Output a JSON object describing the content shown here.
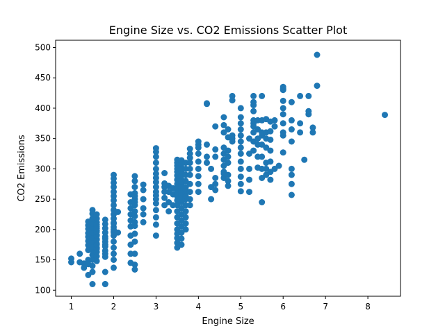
{
  "chart_data": {
    "type": "scatter",
    "title": "Engine Size vs. CO2 Emissions Scatter Plot",
    "xlabel": "Engine Size",
    "ylabel": "CO2 Emissions",
    "xlim": [
      0.63,
      8.77
    ],
    "ylim": [
      90,
      512
    ],
    "xticks": [
      1,
      2,
      3,
      4,
      5,
      6,
      7,
      8
    ],
    "yticks": [
      100,
      150,
      200,
      250,
      300,
      350,
      400,
      450,
      500
    ],
    "grid": false,
    "marker_color": "#1f77b4",
    "series": [
      {
        "x": [
          1.0,
          1.0,
          1.2,
          1.2,
          1.3,
          1.3,
          1.4,
          1.4,
          1.4,
          1.4,
          1.4,
          1.4,
          1.4,
          1.4,
          1.4,
          1.4,
          1.4,
          1.5,
          1.5,
          1.5,
          1.5,
          1.5,
          1.5,
          1.5,
          1.5,
          1.5,
          1.5,
          1.5,
          1.5,
          1.5,
          1.5,
          1.5,
          1.6,
          1.6,
          1.6,
          1.6,
          1.6,
          1.6,
          1.6,
          1.6,
          1.6,
          1.6,
          1.6,
          1.6,
          1.6,
          1.6,
          1.6,
          1.6,
          1.6,
          1.6,
          1.6,
          1.8,
          1.8,
          1.8,
          1.8,
          1.8,
          1.8,
          1.8,
          1.8,
          1.8,
          1.8,
          1.8,
          1.8,
          1.8,
          1.8,
          1.8,
          2.0,
          2.0,
          2.0,
          2.0,
          2.0,
          2.0,
          2.0,
          2.0,
          2.0,
          2.0,
          2.0,
          2.0,
          2.0,
          2.0,
          2.0,
          2.0,
          2.0,
          2.0,
          2.0,
          2.0,
          2.0,
          2.0,
          2.0,
          2.1,
          2.1,
          2.4,
          2.4,
          2.4,
          2.4,
          2.4,
          2.4,
          2.4,
          2.4,
          2.4,
          2.4,
          2.5,
          2.5,
          2.5,
          2.5,
          2.5,
          2.5,
          2.5,
          2.5,
          2.5,
          2.5,
          2.5,
          2.5,
          2.5,
          2.5,
          2.5,
          2.5,
          2.5,
          2.7,
          2.7,
          2.7,
          2.7,
          2.7,
          2.7,
          3.0,
          3.0,
          3.0,
          3.0,
          3.0,
          3.0,
          3.0,
          3.0,
          3.0,
          3.0,
          3.0,
          3.0,
          3.0,
          3.0,
          3.0,
          3.0,
          3.0,
          3.2,
          3.2,
          3.2,
          3.2,
          3.2,
          3.2,
          3.3,
          3.3,
          3.3,
          3.3,
          3.4,
          3.4,
          3.4,
          3.5,
          3.5,
          3.5,
          3.5,
          3.5,
          3.5,
          3.5,
          3.5,
          3.5,
          3.5,
          3.5,
          3.5,
          3.5,
          3.5,
          3.5,
          3.5,
          3.5,
          3.5,
          3.5,
          3.5,
          3.5,
          3.5,
          3.5,
          3.6,
          3.6,
          3.6,
          3.6,
          3.6,
          3.6,
          3.6,
          3.6,
          3.6,
          3.6,
          3.6,
          3.6,
          3.6,
          3.6,
          3.6,
          3.6,
          3.6,
          3.6,
          3.6,
          3.6,
          3.6,
          3.6,
          3.7,
          3.7,
          3.7,
          3.7,
          3.7,
          3.7,
          3.7,
          3.7,
          3.7,
          3.7,
          3.7,
          3.7,
          3.7,
          3.7,
          3.8,
          3.8,
          3.8,
          3.8,
          3.8,
          3.8,
          3.8,
          3.8,
          3.8,
          3.8,
          4.0,
          4.0,
          4.0,
          4.0,
          4.0,
          4.0,
          4.0,
          4.0,
          4.0,
          4.2,
          4.2,
          4.2,
          4.2,
          4.2,
          4.3,
          4.3,
          4.3,
          4.4,
          4.4,
          4.4,
          4.4,
          4.4,
          4.4,
          4.6,
          4.6,
          4.6,
          4.6,
          4.6,
          4.6,
          4.6,
          4.6,
          4.6,
          4.6,
          4.7,
          4.7,
          4.7,
          4.7,
          4.7,
          4.7,
          4.7,
          4.7,
          4.8,
          4.8,
          4.8,
          4.8,
          4.8,
          5.0,
          5.0,
          5.0,
          5.0,
          5.0,
          5.0,
          5.0,
          5.0,
          5.0,
          5.0,
          5.0,
          5.0,
          5.0,
          5.2,
          5.2,
          5.2,
          5.2,
          5.2,
          5.3,
          5.3,
          5.3,
          5.3,
          5.3,
          5.3,
          5.3,
          5.3,
          5.3,
          5.3,
          5.4,
          5.4,
          5.4,
          5.4,
          5.4,
          5.4,
          5.5,
          5.5,
          5.5,
          5.5,
          5.5,
          5.5,
          5.5,
          5.5,
          5.5,
          5.6,
          5.6,
          5.6,
          5.6,
          5.6,
          5.6,
          5.6,
          5.7,
          5.7,
          5.7,
          5.7,
          5.7,
          5.7,
          5.7,
          5.8,
          5.8,
          5.8,
          5.9,
          6.0,
          6.0,
          6.0,
          6.0,
          6.0,
          6.0,
          6.0,
          6.0,
          6.0,
          6.0,
          6.2,
          6.2,
          6.2,
          6.2,
          6.2,
          6.2,
          6.2,
          6.2,
          6.4,
          6.4,
          6.4,
          6.5,
          6.6,
          6.6,
          6.6,
          6.7,
          6.7,
          6.8,
          6.8,
          8.4
        ],
        "y": [
          152,
          146,
          160,
          146,
          137,
          144,
          150,
          143,
          125,
          166,
          174,
          181,
          188,
          194,
          201,
          207,
          213,
          110,
          130,
          140,
          150,
          158,
          165,
          172,
          180,
          187,
          195,
          203,
          210,
          218,
          226,
          232,
          148,
          156,
          163,
          170,
          177,
          184,
          191,
          198,
          205,
          212,
          218,
          225,
          168,
          175,
          183,
          190,
          196,
          202,
          208,
          110,
          130,
          155,
          165,
          172,
          180,
          188,
          195,
          202,
          209,
          216,
          160,
          175,
          185,
          110,
          137,
          150,
          160,
          170,
          180,
          190,
          197,
          204,
          211,
          218,
          225,
          232,
          240,
          248,
          255,
          262,
          270,
          277,
          284,
          290,
          195,
          200,
          210,
          195,
          229,
          145,
          160,
          175,
          190,
          205,
          215,
          225,
          235,
          245,
          258,
          134,
          142,
          160,
          180,
          193,
          206,
          212,
          222,
          230,
          240,
          250,
          260,
          270,
          280,
          288,
          245,
          255,
          212,
          225,
          235,
          250,
          265,
          274,
          190,
          208,
          220,
          232,
          243,
          250,
          256,
          262,
          270,
          278,
          285,
          292,
          300,
          310,
          320,
          328,
          334,
          240,
          252,
          262,
          270,
          276,
          293,
          230,
          245,
          262,
          272,
          240,
          258,
          268,
          170,
          178,
          186,
          193,
          200,
          210,
          220,
          230,
          240,
          248,
          255,
          262,
          268,
          275,
          282,
          289,
          295,
          300,
          305,
          310,
          315,
          260,
          270,
          175,
          185,
          195,
          205,
          215,
          225,
          235,
          245,
          255,
          262,
          268,
          275,
          282,
          289,
          296,
          302,
          308,
          314,
          250,
          260,
          270,
          280,
          200,
          210,
          220,
          230,
          240,
          250,
          260,
          270,
          280,
          290,
          300,
          310,
          255,
          265,
          240,
          250,
          262,
          275,
          290,
          300,
          310,
          318,
          325,
          333,
          262,
          275,
          288,
          300,
          312,
          325,
          335,
          340,
          345,
          340,
          310,
          320,
          407,
          408,
          250,
          270,
          300,
          265,
          275,
          285,
          370,
          320,
          332,
          285,
          295,
          305,
          315,
          325,
          335,
          360,
          372,
          385,
          292,
          272,
          280,
          290,
          310,
          320,
          330,
          352,
          365,
          345,
          350,
          355,
          413,
          420,
          263,
          275,
          287,
          300,
          312,
          325,
          335,
          345,
          355,
          365,
          375,
          385,
          400,
          262,
          282,
          300,
          325,
          350,
          330,
          345,
          360,
          370,
          375,
          380,
          395,
          405,
          410,
          420,
          302,
          320,
          340,
          350,
          365,
          380,
          245,
          285,
          300,
          320,
          340,
          355,
          360,
          380,
          420,
          290,
          300,
          310,
          335,
          350,
          360,
          382,
          282,
          295,
          312,
          330,
          348,
          362,
          378,
          300,
          370,
          380,
          305,
          327,
          355,
          360,
          375,
          390,
          400,
          412,
          430,
          432,
          435,
          257,
          275,
          290,
          300,
          345,
          365,
          380,
          410,
          360,
          375,
          420,
          315,
          390,
          395,
          420,
          368,
          360,
          437,
          488,
          389
        ]
      }
    ]
  }
}
